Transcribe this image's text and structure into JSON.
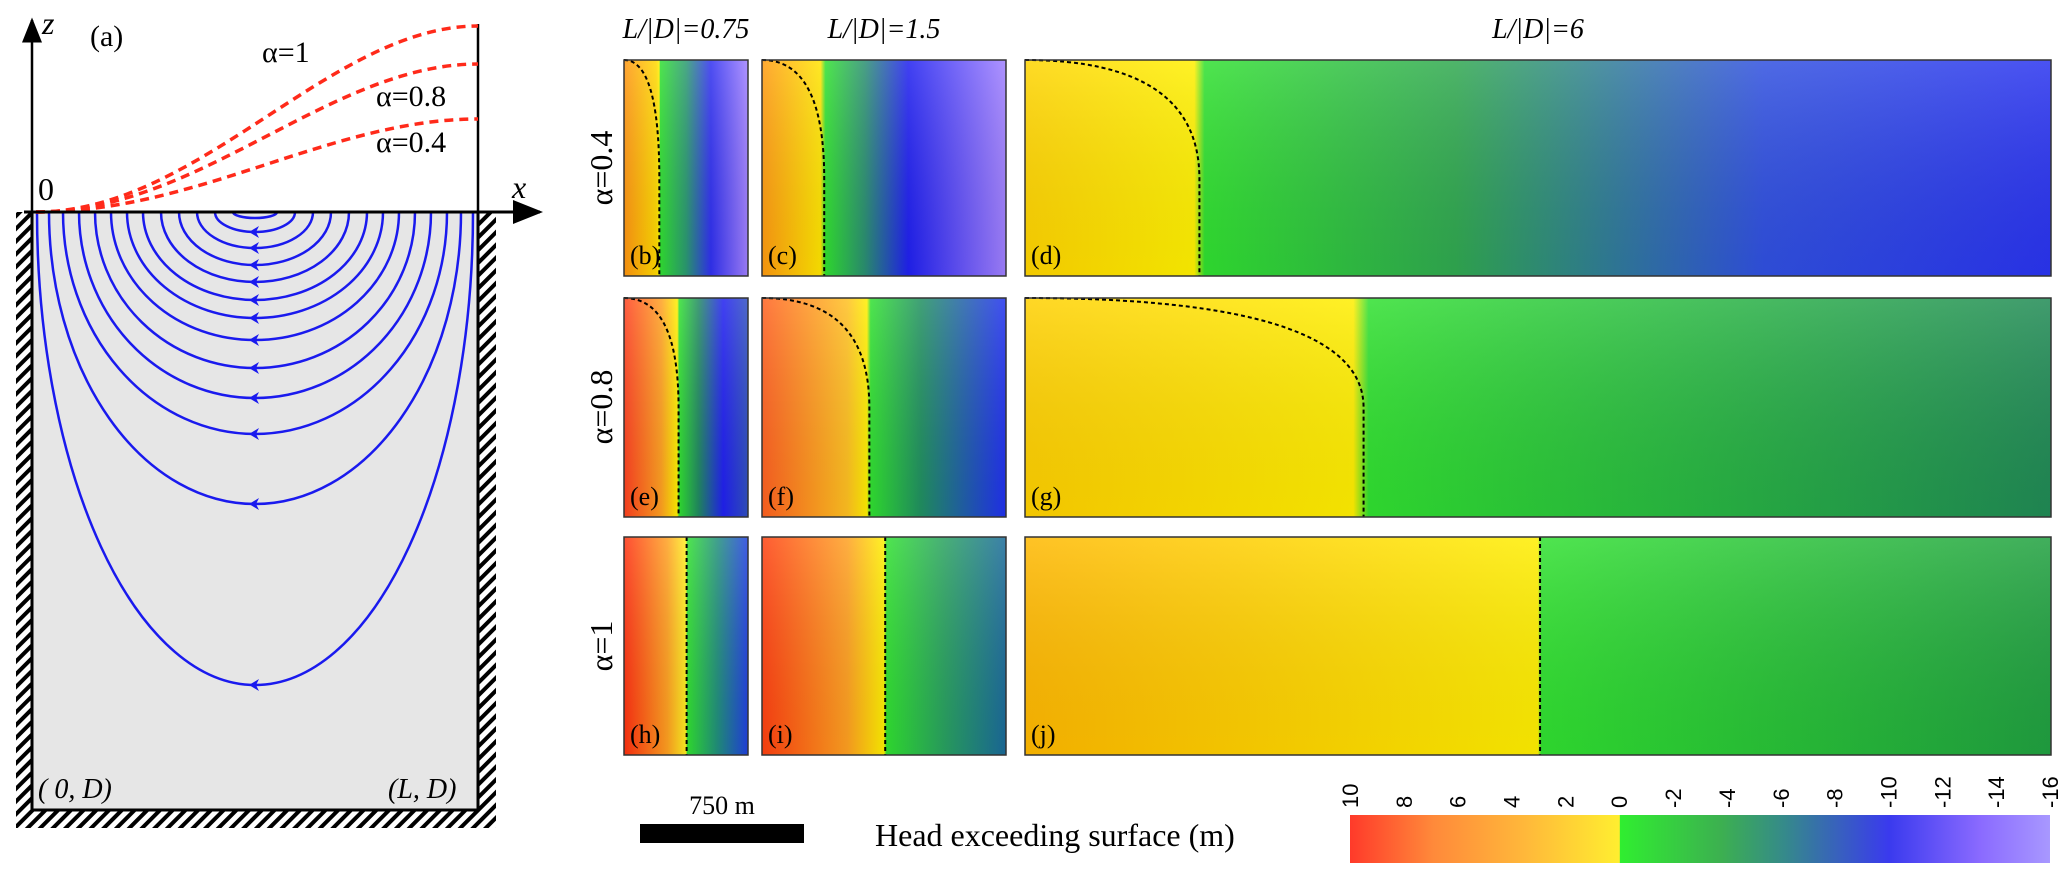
{
  "panel_a": {
    "label": "(a)",
    "z_axis": "z",
    "x_axis": "x",
    "origin": "0",
    "bottom_left": "( 0, D)",
    "bottom_right": "(L, D)",
    "water_table_curves": [
      {
        "label": "α=1",
        "alpha": 1
      },
      {
        "label": "α=0.8",
        "alpha": 0.8
      },
      {
        "label": "α=0.4",
        "alpha": 0.4
      }
    ],
    "curve_color": "#ff2a1a",
    "flowline_color": "#1a1aee",
    "domain_fill": "#e6e6e6"
  },
  "columns": [
    {
      "title": "L/|D|=0.75"
    },
    {
      "title": "L/|D|=1.5"
    },
    {
      "title": "L/|D|=6"
    }
  ],
  "rows": [
    {
      "label": "α=0.4",
      "panels": [
        "(b)",
        "(c)",
        "(d)"
      ]
    },
    {
      "label": "α=0.8",
      "panels": [
        "(e)",
        "(f)",
        "(g)"
      ]
    },
    {
      "label": "α=1",
      "panels": [
        "(h)",
        "(i)",
        "(j)"
      ]
    }
  ],
  "scale_bar": {
    "label": "750 m"
  },
  "colorbar": {
    "label": "Head exceeding surface (m)",
    "min": -16,
    "max": 10,
    "ticks": [
      "10",
      "8",
      "6",
      "4",
      "2",
      "0",
      "-2",
      "-4",
      "-6",
      "-8",
      "-10",
      "-12",
      "-14",
      "-16"
    ],
    "colors": [
      "#ff3a2a",
      "#ff8a3a",
      "#ffb83a",
      "#ffee30",
      "#30ee30",
      "#3cb050",
      "#358a8a",
      "#3a3aee",
      "#8a6aff",
      "#a898ff"
    ]
  }
}
